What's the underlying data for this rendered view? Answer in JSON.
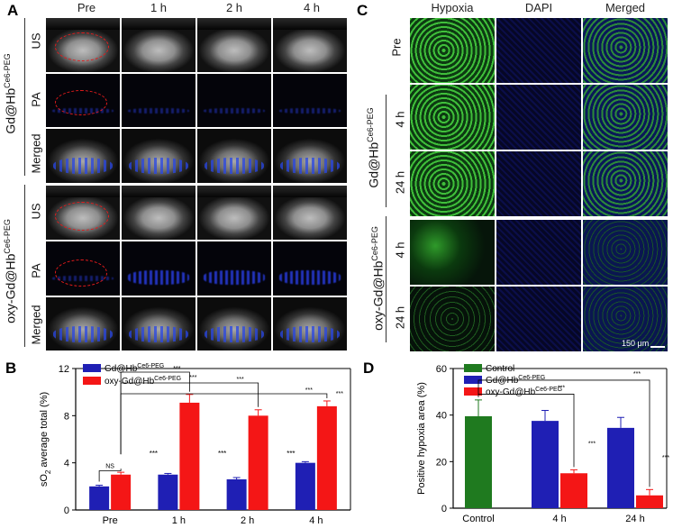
{
  "panel_a": {
    "label": "A",
    "columns": [
      "Pre",
      "1 h",
      "2 h",
      "4 h"
    ],
    "group1": "Gd@Hb",
    "group1_sup": "Ce6-PEG",
    "group2": "oxy-Gd@Hb",
    "group2_sup": "Ce6-PEG",
    "rows": [
      "US",
      "PA",
      "Merged"
    ]
  },
  "panel_c": {
    "label": "C",
    "columns": [
      "Hypoxia",
      "DAPI",
      "Merged"
    ],
    "row_pre": "Pre",
    "group1": "Gd@Hb",
    "group1_sup": "Ce6-PEG",
    "group2": "oxy-Gd@Hb",
    "group2_sup": "Ce6-PEG",
    "time_4h": "4 h",
    "time_24h": "24 h",
    "scale_bar": "150 μm"
  },
  "colors": {
    "blue": "#1f1fb4",
    "red": "#f41616",
    "green": "#1f7a1f"
  },
  "chart_data": [
    {
      "panel": "B",
      "type": "bar",
      "ylabel_main": "sO",
      "ylabel_sub": "2",
      "ylabel_rest": " average total (%)",
      "ylim": [
        0,
        12
      ],
      "yticks": [
        "0",
        "4",
        "8",
        "12"
      ],
      "categories": [
        "Pre",
        "1 h",
        "2 h",
        "4 h"
      ],
      "series": [
        {
          "name": "Gd@Hb",
          "sup": "Ce6-PEG",
          "color": "#1f1fb4",
          "values": [
            2.0,
            3.0,
            2.6,
            4.0
          ],
          "errors": [
            0.1,
            0.1,
            0.15,
            0.1
          ]
        },
        {
          "name": "oxy-Gd@Hb",
          "sup": "Ce6-PEG",
          "color": "#f41616",
          "values": [
            3.0,
            9.1,
            8.0,
            8.8
          ],
          "errors": [
            0.2,
            0.7,
            0.5,
            0.45
          ]
        }
      ],
      "significance": [
        "NS",
        "***",
        "***",
        "***",
        "***",
        "***",
        "***",
        "***",
        "***"
      ]
    },
    {
      "panel": "D",
      "type": "bar",
      "ylabel": "Positive hypoxia area (%)",
      "ylim": [
        0,
        60
      ],
      "yticks": [
        "0",
        "20",
        "40",
        "60"
      ],
      "categories": [
        "Control",
        "4 h",
        "24 h"
      ],
      "legend": [
        {
          "name": "Control",
          "sup": "",
          "color": "#1f7a1f"
        },
        {
          "name": "Gd@Hb",
          "sup": "Ce6-PEG",
          "color": "#1f1fb4"
        },
        {
          "name": "oxy-Gd@Hb",
          "sup": "Ce6-PEG",
          "color": "#f41616"
        }
      ],
      "bars": [
        {
          "category": "Control",
          "series": "Control",
          "value": 39.5,
          "error": 7.0
        },
        {
          "category": "4 h",
          "series": "Gd@Hb",
          "value": 37.5,
          "error": 4.5
        },
        {
          "category": "4 h",
          "series": "oxy-Gd@Hb",
          "value": 15.0,
          "error": 1.5
        },
        {
          "category": "24 h",
          "series": "Gd@Hb",
          "value": 34.5,
          "error": 4.5
        },
        {
          "category": "24 h",
          "series": "oxy-Gd@Hb",
          "value": 5.5,
          "error": 2.5
        }
      ],
      "significance": [
        "***",
        "***",
        "***",
        "***"
      ]
    }
  ]
}
